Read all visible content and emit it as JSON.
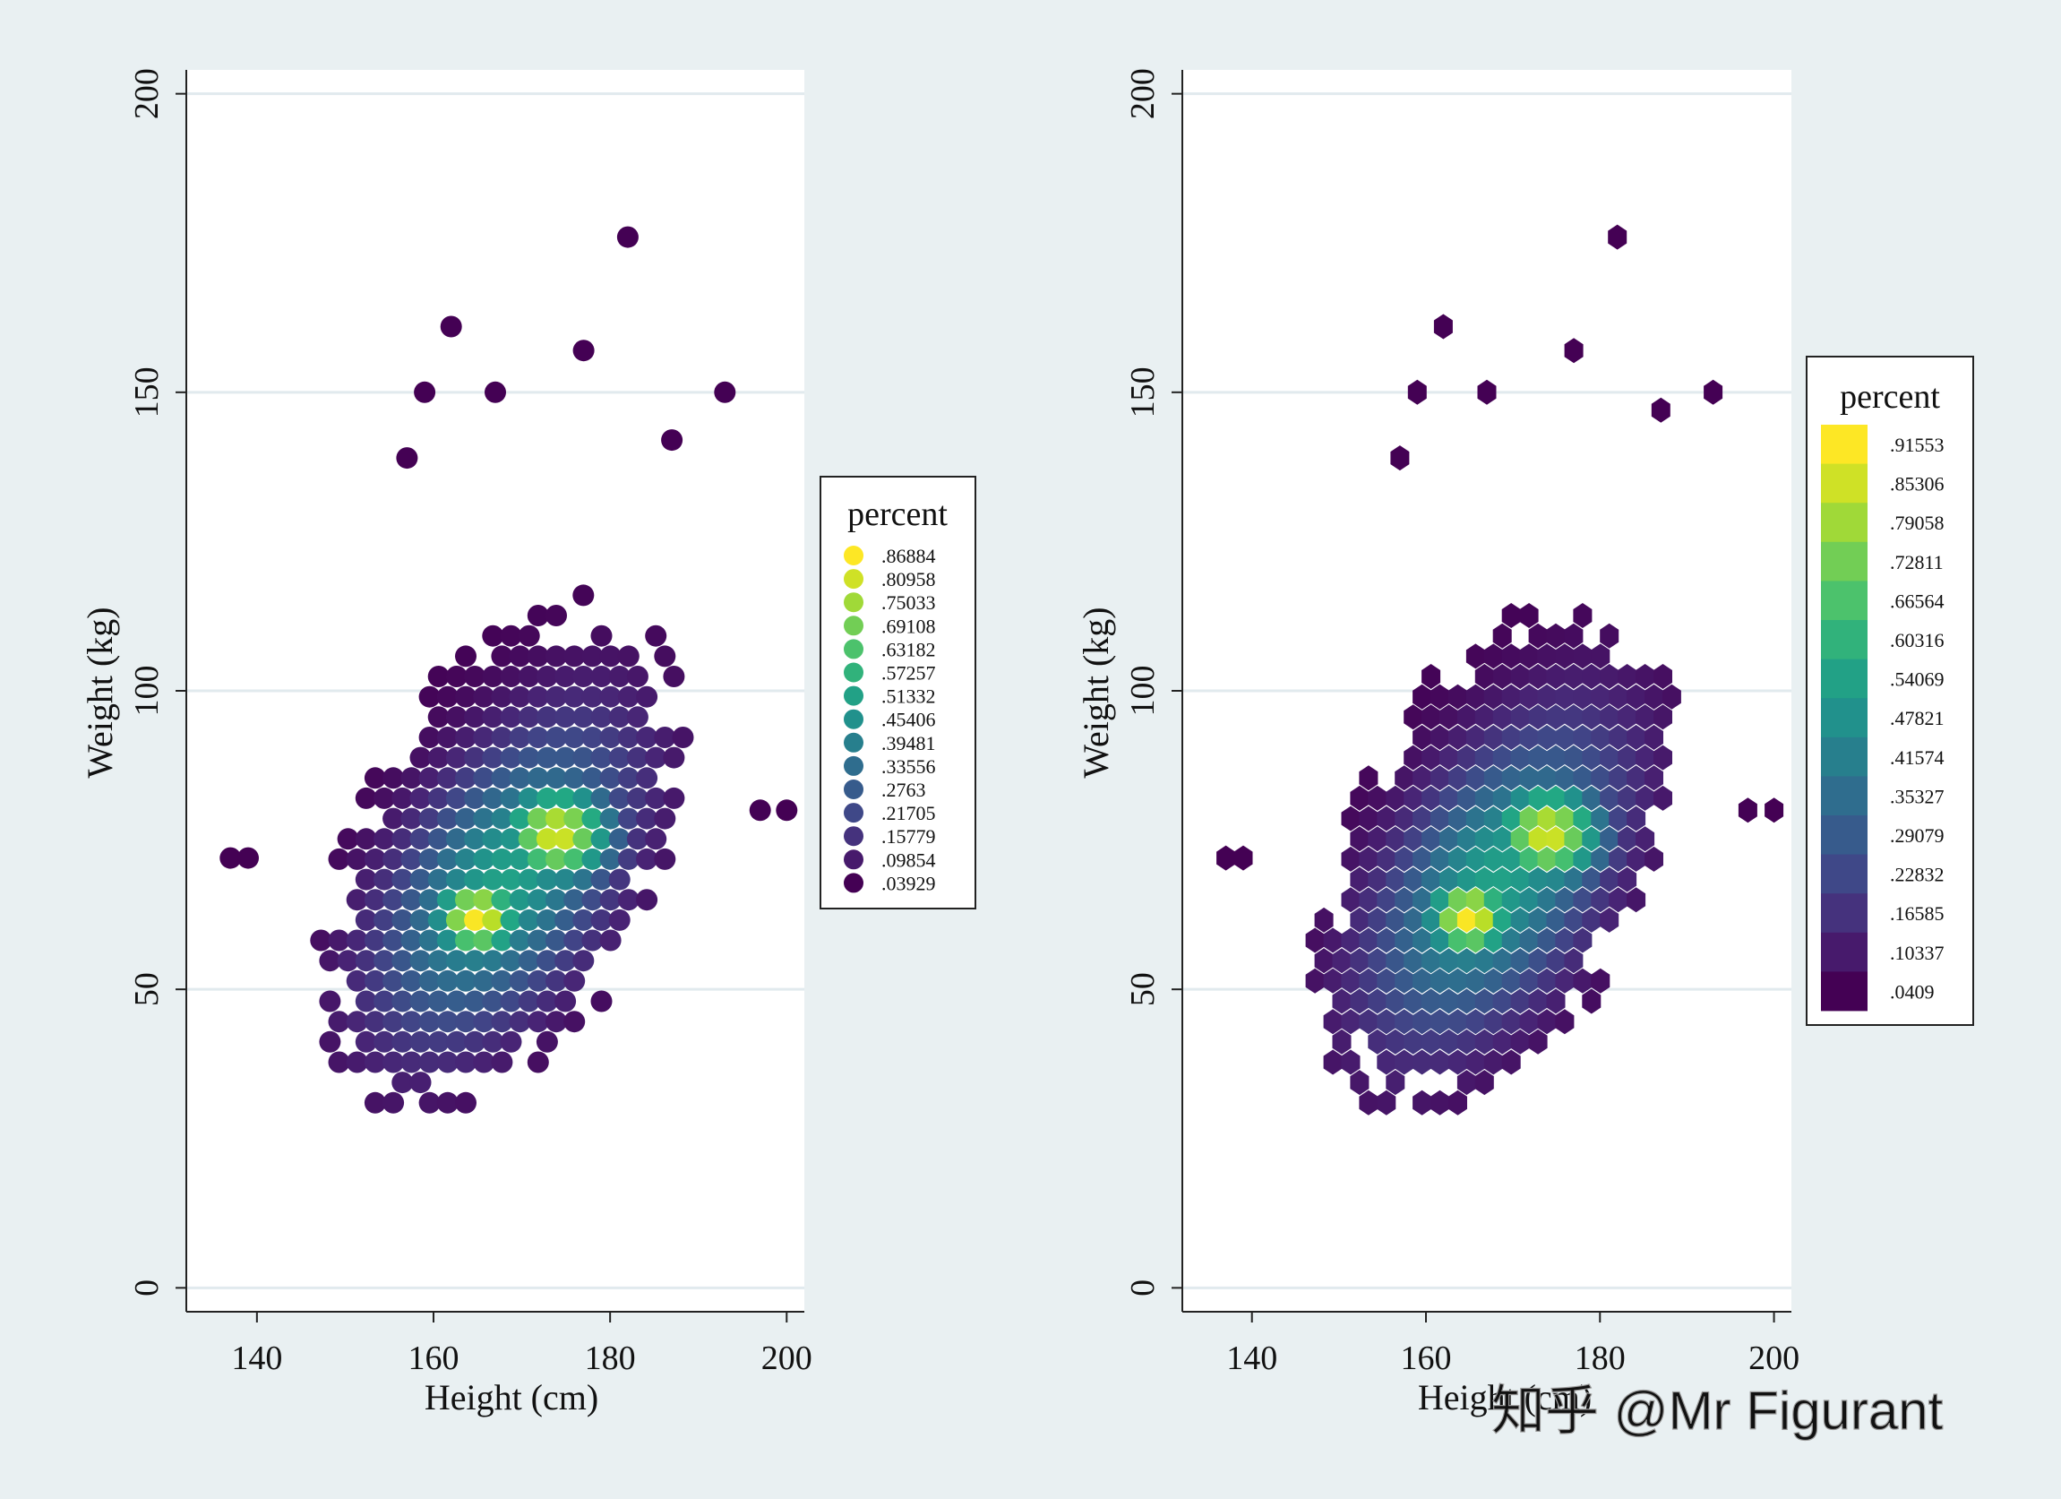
{
  "chart_data": [
    {
      "type": "scatter",
      "marker": "circle",
      "xlabel": "Height (cm)",
      "ylabel": "Weight (kg)",
      "xlim": [
        132,
        202
      ],
      "ylim": [
        -4,
        204
      ],
      "xticks": [
        "140",
        "160",
        "180",
        "200"
      ],
      "yticks": [
        "0",
        "50",
        "100",
        "150",
        "200"
      ],
      "grid": "horizontal",
      "legend": {
        "title": "percent",
        "position": "right",
        "entries": [
          ".86884",
          ".80958",
          ".75033",
          ".69108",
          ".63182",
          ".57257",
          ".51332",
          ".45406",
          ".39481",
          ".33556",
          ".2763",
          ".21705",
          ".15779",
          ".09854",
          ".03929"
        ]
      },
      "density": {
        "peak": {
          "x": 165,
          "y": 62
        },
        "secondary_peak": {
          "x": 174,
          "y": 76
        },
        "x_range": [
          137,
          200
        ],
        "y_range": [
          31,
          176
        ]
      },
      "outliers": [
        [
          182,
          176
        ],
        [
          162,
          161
        ],
        [
          177,
          157
        ],
        [
          159,
          150
        ],
        [
          167,
          150
        ],
        [
          193,
          150
        ],
        [
          187,
          142
        ],
        [
          157,
          139
        ],
        [
          137,
          72
        ],
        [
          139,
          72
        ],
        [
          197,
          80
        ],
        [
          200,
          80
        ]
      ]
    },
    {
      "type": "heatmap",
      "marker": "hexagon",
      "xlabel": "Height (cm)",
      "ylabel": "Weight (kg)",
      "xlim": [
        132,
        202
      ],
      "ylim": [
        -4,
        204
      ],
      "xticks": [
        "140",
        "160",
        "180",
        "200"
      ],
      "yticks": [
        "0",
        "50",
        "100",
        "150",
        "200"
      ],
      "grid": "horizontal",
      "legend": {
        "title": "percent",
        "position": "right",
        "entries": [
          ".91553",
          ".85306",
          ".79058",
          ".72811",
          ".66564",
          ".60316",
          ".54069",
          ".47821",
          ".41574",
          ".35327",
          ".29079",
          ".22832",
          ".16585",
          ".10337",
          ".0409"
        ]
      },
      "density": {
        "peak": {
          "x": 165,
          "y": 62
        },
        "secondary_peak": {
          "x": 174,
          "y": 76
        },
        "x_range": [
          137,
          200
        ],
        "y_range": [
          31,
          176
        ]
      },
      "outliers": [
        [
          182,
          176
        ],
        [
          162,
          161
        ],
        [
          177,
          157
        ],
        [
          159,
          150
        ],
        [
          167,
          150
        ],
        [
          193,
          150
        ],
        [
          187,
          147
        ],
        [
          157,
          139
        ],
        [
          137,
          72
        ],
        [
          139,
          72
        ],
        [
          197,
          80
        ],
        [
          200,
          80
        ]
      ]
    }
  ],
  "watermark": "知乎 @Mr Figurant",
  "colors": {
    "background": "#e9f0f2",
    "plot_background": "#ffffff",
    "grid": "#e1eaee",
    "viridis": [
      "#440154",
      "#482475",
      "#414487",
      "#355f8d",
      "#2a788e",
      "#21918c",
      "#22a884",
      "#44bf70",
      "#7ad151",
      "#bddf26",
      "#fde725"
    ]
  }
}
